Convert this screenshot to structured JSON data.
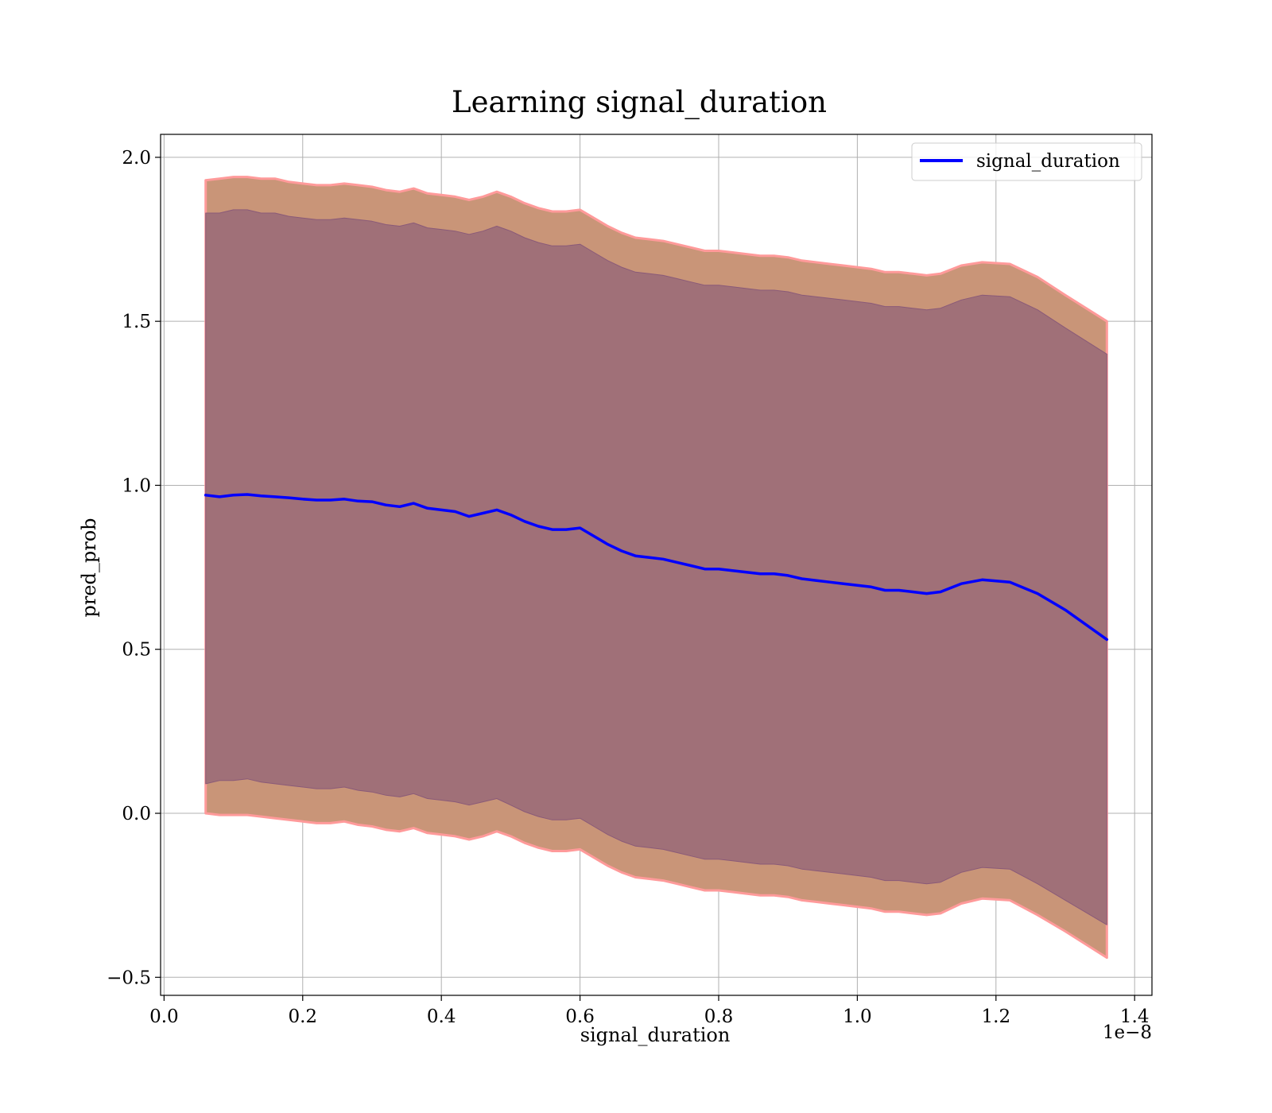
{
  "chart_data": {
    "type": "line",
    "title": "Learning signal_duration",
    "xlabel": "signal_duration",
    "ylabel": "pred_prob",
    "x_offset_label": "1e−8",
    "xlim": [
      -0.005,
      1.425
    ],
    "ylim": [
      -0.555,
      2.07
    ],
    "x_ticks": [
      0.0,
      0.2,
      0.4,
      0.6,
      0.8,
      1.0,
      1.2,
      1.4
    ],
    "x_tick_labels": [
      "0.0",
      "0.2",
      "0.4",
      "0.6",
      "0.8",
      "1.0",
      "1.2",
      "1.4"
    ],
    "y_ticks": [
      -0.5,
      0.0,
      0.5,
      1.0,
      1.5,
      2.0
    ],
    "y_tick_labels": [
      "−0.5",
      "0.0",
      "0.5",
      "1.0",
      "1.5",
      "2.0"
    ],
    "grid": true,
    "legend": {
      "position": "top-right",
      "entries": [
        "signal_duration"
      ]
    },
    "colors": {
      "line": "#0000ff",
      "inner_band": "#a07078",
      "outer_band": "#c99578",
      "outer_edge": "#ff9a9a",
      "inner_edge": "#8a5a78",
      "grid": "#b0b0b0"
    },
    "series": [
      {
        "name": "signal_duration",
        "x": [
          0.06,
          0.08,
          0.1,
          0.12,
          0.14,
          0.16,
          0.18,
          0.2,
          0.22,
          0.24,
          0.26,
          0.28,
          0.3,
          0.32,
          0.34,
          0.36,
          0.38,
          0.4,
          0.42,
          0.44,
          0.46,
          0.48,
          0.5,
          0.52,
          0.54,
          0.56,
          0.58,
          0.6,
          0.62,
          0.64,
          0.66,
          0.68,
          0.7,
          0.72,
          0.74,
          0.76,
          0.78,
          0.8,
          0.82,
          0.84,
          0.86,
          0.88,
          0.9,
          0.92,
          0.94,
          0.96,
          0.98,
          1.0,
          1.02,
          1.04,
          1.06,
          1.08,
          1.1,
          1.12,
          1.15,
          1.18,
          1.22,
          1.26,
          1.3,
          1.36
        ],
        "y": [
          0.97,
          0.965,
          0.97,
          0.972,
          0.968,
          0.965,
          0.962,
          0.958,
          0.955,
          0.955,
          0.958,
          0.952,
          0.95,
          0.94,
          0.935,
          0.945,
          0.93,
          0.925,
          0.92,
          0.905,
          0.915,
          0.925,
          0.91,
          0.89,
          0.875,
          0.865,
          0.865,
          0.87,
          0.845,
          0.82,
          0.8,
          0.785,
          0.78,
          0.775,
          0.765,
          0.755,
          0.745,
          0.745,
          0.74,
          0.735,
          0.73,
          0.73,
          0.725,
          0.715,
          0.71,
          0.705,
          0.7,
          0.695,
          0.69,
          0.68,
          0.68,
          0.675,
          0.67,
          0.675,
          0.7,
          0.712,
          0.705,
          0.67,
          0.62,
          0.53
        ],
        "inner_band_lower": [
          0.09,
          0.1,
          0.1,
          0.105,
          0.095,
          0.09,
          0.085,
          0.08,
          0.075,
          0.075,
          0.08,
          0.07,
          0.065,
          0.055,
          0.05,
          0.06,
          0.045,
          0.04,
          0.035,
          0.025,
          0.035,
          0.045,
          0.025,
          0.005,
          -0.01,
          -0.02,
          -0.02,
          -0.015,
          -0.04,
          -0.065,
          -0.085,
          -0.1,
          -0.105,
          -0.11,
          -0.12,
          -0.13,
          -0.14,
          -0.14,
          -0.145,
          -0.15,
          -0.155,
          -0.155,
          -0.16,
          -0.17,
          -0.175,
          -0.18,
          -0.185,
          -0.19,
          -0.195,
          -0.205,
          -0.205,
          -0.21,
          -0.215,
          -0.21,
          -0.18,
          -0.165,
          -0.17,
          -0.215,
          -0.265,
          -0.34
        ],
        "inner_band_upper": [
          1.83,
          1.83,
          1.84,
          1.84,
          1.83,
          1.83,
          1.82,
          1.815,
          1.81,
          1.81,
          1.815,
          1.81,
          1.805,
          1.795,
          1.79,
          1.8,
          1.785,
          1.78,
          1.775,
          1.765,
          1.775,
          1.79,
          1.775,
          1.755,
          1.74,
          1.73,
          1.73,
          1.735,
          1.71,
          1.685,
          1.665,
          1.65,
          1.645,
          1.64,
          1.63,
          1.62,
          1.61,
          1.61,
          1.605,
          1.6,
          1.595,
          1.595,
          1.59,
          1.58,
          1.575,
          1.57,
          1.565,
          1.56,
          1.555,
          1.545,
          1.545,
          1.54,
          1.535,
          1.54,
          1.565,
          1.58,
          1.575,
          1.535,
          1.48,
          1.4
        ],
        "outer_band_lower": [
          0.0,
          -0.005,
          -0.005,
          -0.005,
          -0.01,
          -0.015,
          -0.02,
          -0.025,
          -0.03,
          -0.03,
          -0.025,
          -0.035,
          -0.04,
          -0.05,
          -0.055,
          -0.045,
          -0.06,
          -0.065,
          -0.07,
          -0.08,
          -0.07,
          -0.055,
          -0.07,
          -0.09,
          -0.105,
          -0.115,
          -0.115,
          -0.11,
          -0.135,
          -0.16,
          -0.18,
          -0.195,
          -0.2,
          -0.205,
          -0.215,
          -0.225,
          -0.235,
          -0.235,
          -0.24,
          -0.245,
          -0.25,
          -0.25,
          -0.255,
          -0.265,
          -0.27,
          -0.275,
          -0.28,
          -0.285,
          -0.29,
          -0.3,
          -0.3,
          -0.305,
          -0.31,
          -0.305,
          -0.275,
          -0.26,
          -0.265,
          -0.31,
          -0.36,
          -0.44
        ],
        "outer_band_upper": [
          1.93,
          1.935,
          1.94,
          1.94,
          1.935,
          1.935,
          1.925,
          1.92,
          1.915,
          1.915,
          1.92,
          1.915,
          1.91,
          1.9,
          1.895,
          1.905,
          1.89,
          1.885,
          1.88,
          1.87,
          1.88,
          1.895,
          1.88,
          1.86,
          1.845,
          1.835,
          1.835,
          1.84,
          1.815,
          1.79,
          1.77,
          1.755,
          1.75,
          1.745,
          1.735,
          1.725,
          1.715,
          1.715,
          1.71,
          1.705,
          1.7,
          1.7,
          1.695,
          1.685,
          1.68,
          1.675,
          1.67,
          1.665,
          1.66,
          1.65,
          1.65,
          1.645,
          1.64,
          1.645,
          1.67,
          1.68,
          1.675,
          1.635,
          1.58,
          1.5
        ]
      }
    ]
  }
}
